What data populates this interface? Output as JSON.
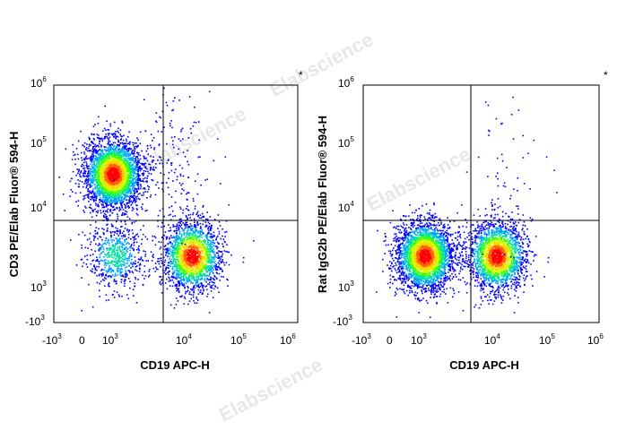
{
  "colors": {
    "density_scale": [
      "#0000ff",
      "#00a0ff",
      "#00e0a0",
      "#40ff00",
      "#d0ff00",
      "#ffd000",
      "#ff6000",
      "#ff0000"
    ],
    "frame": "#000000",
    "gate": "#000000",
    "watermark": "#c8c8c8"
  },
  "watermark": "Elabscience",
  "chart_data": [
    {
      "type": "scatter",
      "style": "flow-cytometry pseudocolor density dot plot",
      "marker": "*",
      "xlabel": "CD19 APC-H",
      "ylabel": "CD3 PE/Elab Fluor® 594-H",
      "x_scale": "biexponential",
      "y_scale": "biexponential",
      "x_tick_labels": [
        {
          "base": "-10",
          "exp": "3",
          "value": -1000
        },
        {
          "base": "0",
          "exp": "",
          "value": 0
        },
        {
          "base": "10",
          "exp": "3",
          "value": 1000
        },
        {
          "base": "10",
          "exp": "4",
          "value": 10000
        },
        {
          "base": "10",
          "exp": "5",
          "value": 100000
        },
        {
          "base": "10",
          "exp": "6",
          "value": 1000000
        }
      ],
      "y_tick_labels": [
        {
          "base": "-10",
          "exp": "3",
          "value": -1000
        },
        {
          "base": "10",
          "exp": "3",
          "value": 1000
        },
        {
          "base": "10",
          "exp": "4",
          "value": 10000
        },
        {
          "base": "10",
          "exp": "5",
          "value": 100000
        },
        {
          "base": "10",
          "exp": "6",
          "value": 1000000
        }
      ],
      "quadrant_gate": {
        "x": 5000,
        "y": 6000
      },
      "populations": [
        {
          "x": 700,
          "y": 35000,
          "count": 3200,
          "relative_density": 1.0
        },
        {
          "x": 20000,
          "y": 1200,
          "count": 2000,
          "relative_density": 1.0
        },
        {
          "x": 800,
          "y": 1200,
          "count": 650,
          "relative_density": 0.35
        },
        {
          "x": 10000,
          "y": 50000,
          "count": 180,
          "relative_density": 0.05
        }
      ]
    },
    {
      "type": "scatter",
      "style": "flow-cytometry pseudocolor density dot plot",
      "marker": "*",
      "xlabel": "CD19 APC-H",
      "ylabel": "Rat IgG2b PE/Elab Fluor® 594-H",
      "x_scale": "biexponential",
      "y_scale": "biexponential",
      "x_tick_labels": [
        {
          "base": "-10",
          "exp": "3",
          "value": -1000
        },
        {
          "base": "0",
          "exp": "",
          "value": 0
        },
        {
          "base": "10",
          "exp": "3",
          "value": 1000
        },
        {
          "base": "10",
          "exp": "4",
          "value": 10000
        },
        {
          "base": "10",
          "exp": "5",
          "value": 100000
        },
        {
          "base": "10",
          "exp": "6",
          "value": 1000000
        }
      ],
      "y_tick_labels": [
        {
          "base": "-10",
          "exp": "3",
          "value": -1000
        },
        {
          "base": "10",
          "exp": "3",
          "value": 1000
        },
        {
          "base": "10",
          "exp": "4",
          "value": 10000
        },
        {
          "base": "10",
          "exp": "5",
          "value": 100000
        },
        {
          "base": "10",
          "exp": "6",
          "value": 1000000
        }
      ],
      "quadrant_gate": {
        "x": 5000,
        "y": 6000
      },
      "populations": [
        {
          "x": 900,
          "y": 1200,
          "count": 3000,
          "relative_density": 1.0
        },
        {
          "x": 20000,
          "y": 1200,
          "count": 2200,
          "relative_density": 1.0
        },
        {
          "x": 25000,
          "y": 30000,
          "count": 60,
          "relative_density": 0.03
        }
      ]
    }
  ]
}
